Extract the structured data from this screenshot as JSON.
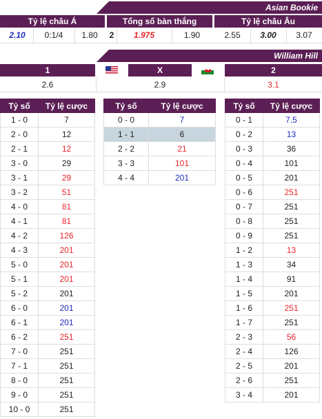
{
  "asian_bookie": {
    "banner": "Asian Bookie",
    "headers": [
      "Tỷ lệ châu Á",
      "Tổng số bàn thắng",
      "Tỷ lệ châu Âu"
    ],
    "asian": [
      "2.10",
      "0:1/4",
      "1.80"
    ],
    "total": [
      "2",
      "1.975",
      "1.90"
    ],
    "euro": [
      "2.55",
      "3.00",
      "3.07"
    ]
  },
  "william_hill": {
    "banner": "William Hill",
    "headers": [
      "1",
      "X",
      "2"
    ],
    "values": [
      "2.6",
      "2.9",
      "3.1"
    ],
    "flags": [
      "us-flag",
      "wales-flag"
    ]
  },
  "score_tables": {
    "col_score": "Tỷ số",
    "col_odds": "Tỷ lệ cược",
    "home": [
      [
        "1 - 0",
        "7",
        "dark"
      ],
      [
        "2 - 0",
        "12",
        "dark"
      ],
      [
        "2 - 1",
        "12",
        "red"
      ],
      [
        "3 - 0",
        "29",
        "dark"
      ],
      [
        "3 - 1",
        "29",
        "red"
      ],
      [
        "3 - 2",
        "51",
        "red"
      ],
      [
        "4 - 0",
        "81",
        "red"
      ],
      [
        "4 - 1",
        "81",
        "red"
      ],
      [
        "4 - 2",
        "126",
        "red"
      ],
      [
        "4 - 3",
        "201",
        "red"
      ],
      [
        "5 - 0",
        "201",
        "red"
      ],
      [
        "5 - 1",
        "201",
        "red"
      ],
      [
        "5 - 2",
        "201",
        "dark"
      ],
      [
        "6 - 0",
        "201",
        "blue"
      ],
      [
        "6 - 1",
        "201",
        "blue"
      ],
      [
        "6 - 2",
        "251",
        "red"
      ],
      [
        "7 - 0",
        "251",
        "dark"
      ],
      [
        "7 - 1",
        "251",
        "dark"
      ],
      [
        "8 - 0",
        "251",
        "dark"
      ],
      [
        "9 - 0",
        "251",
        "dark"
      ],
      [
        "10 - 0",
        "251",
        "dark"
      ]
    ],
    "draw": [
      [
        "0 - 0",
        "7",
        "blue"
      ],
      [
        "1 - 1",
        "6",
        "dark"
      ],
      [
        "2 - 2",
        "21",
        "red"
      ],
      [
        "3 - 3",
        "101",
        "red"
      ],
      [
        "4 - 4",
        "201",
        "blue"
      ]
    ],
    "away": [
      [
        "0 - 1",
        "7.5",
        "blue"
      ],
      [
        "0 - 2",
        "13",
        "blue"
      ],
      [
        "0 - 3",
        "36",
        "dark"
      ],
      [
        "0 - 4",
        "101",
        "dark"
      ],
      [
        "0 - 5",
        "201",
        "dark"
      ],
      [
        "0 - 6",
        "251",
        "red"
      ],
      [
        "0 - 7",
        "251",
        "dark"
      ],
      [
        "0 - 8",
        "251",
        "dark"
      ],
      [
        "0 - 9",
        "251",
        "dark"
      ],
      [
        "1 - 2",
        "13",
        "red"
      ],
      [
        "1 - 3",
        "34",
        "dark"
      ],
      [
        "1 - 4",
        "91",
        "dark"
      ],
      [
        "1 - 5",
        "201",
        "dark"
      ],
      [
        "1 - 6",
        "251",
        "red"
      ],
      [
        "1 - 7",
        "251",
        "dark"
      ],
      [
        "2 - 3",
        "56",
        "red"
      ],
      [
        "2 - 4",
        "126",
        "dark"
      ],
      [
        "2 - 5",
        "201",
        "dark"
      ],
      [
        "2 - 6",
        "251",
        "dark"
      ],
      [
        "3 - 4",
        "201",
        "dark"
      ]
    ]
  }
}
